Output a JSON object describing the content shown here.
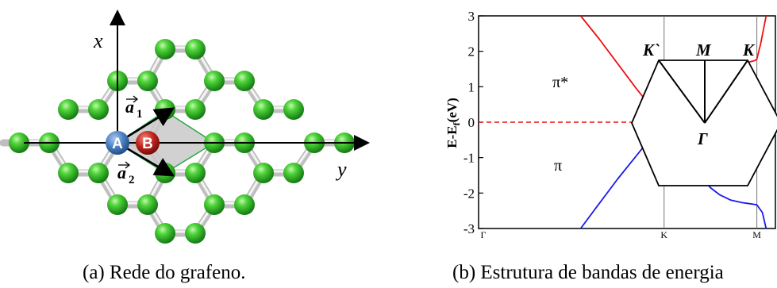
{
  "panel_a": {
    "x_axis_label": "x",
    "y_axis_label": "y",
    "vector_a1": "a",
    "vector_a1_sub": "1",
    "vector_a2": "a",
    "vector_a2_sub": "2",
    "atom_a_label": "A",
    "atom_b_label": "B",
    "caption": "(a) Rede do grafeno.",
    "colors": {
      "carbon": "#2fc52f",
      "bond": "#c8c8c8",
      "atom_a": "#4a7fc0",
      "atom_b": "#c0231d",
      "cell": "#c8c8c8"
    }
  },
  "panel_b": {
    "caption": "(b) Estrutura de bandas de energia",
    "ylabel_main": "E-E",
    "ylabel_sub": "f",
    "ylabel_unit": "(eV)",
    "band_upper_label": "π*",
    "band_lower_label": "π",
    "bz_labels": {
      "k_prime": "K`",
      "m": "M",
      "k": "K",
      "gamma": "Γ"
    },
    "colors": {
      "conduction": "#ee1111",
      "valence": "#1a1aee",
      "fermi": "#ee1111"
    }
  },
  "chart_data": {
    "type": "line",
    "xlabel": "",
    "ylabel": "E-Ef (eV)",
    "ylim": [
      -3,
      3
    ],
    "yticks": [
      -3,
      -2,
      -1,
      0,
      1,
      2,
      3
    ],
    "xticks": [
      "Γ",
      "K",
      "M"
    ],
    "xtick_positions": [
      0,
      1.0,
      1.5
    ],
    "xlim": [
      0,
      1.6
    ],
    "series": [
      {
        "name": "π*",
        "color": "#ee1111",
        "x": [
          0.55,
          0.65,
          0.75,
          0.85,
          0.95,
          1.0
        ],
        "y": [
          3.0,
          2.35,
          1.65,
          0.95,
          0.3,
          0.0
        ]
      },
      {
        "name": "π*",
        "color": "#ee1111",
        "x": [
          1.0,
          1.05,
          1.1,
          1.15,
          1.2,
          1.25,
          1.3,
          1.36,
          1.42,
          1.46,
          1.49,
          1.5,
          1.52,
          1.55
        ],
        "y": [
          0.0,
          0.45,
          0.85,
          1.15,
          1.38,
          1.52,
          1.6,
          1.65,
          1.68,
          1.7,
          1.74,
          1.78,
          2.2,
          3.0
        ]
      },
      {
        "name": "π",
        "color": "#1a1aee",
        "x": [
          0.55,
          0.65,
          0.75,
          0.85,
          0.95,
          1.0
        ],
        "y": [
          -3.0,
          -2.3,
          -1.6,
          -0.95,
          -0.3,
          0.0
        ]
      },
      {
        "name": "π",
        "color": "#1a1aee",
        "x": [
          1.0,
          1.05,
          1.1,
          1.15,
          1.2,
          1.25,
          1.3,
          1.36,
          1.42,
          1.46,
          1.5,
          1.53,
          1.55
        ],
        "y": [
          0.0,
          -0.4,
          -0.8,
          -1.2,
          -1.55,
          -1.85,
          -2.05,
          -2.2,
          -2.27,
          -2.3,
          -2.33,
          -2.55,
          -3.0
        ]
      }
    ],
    "fermi_level": 0
  }
}
